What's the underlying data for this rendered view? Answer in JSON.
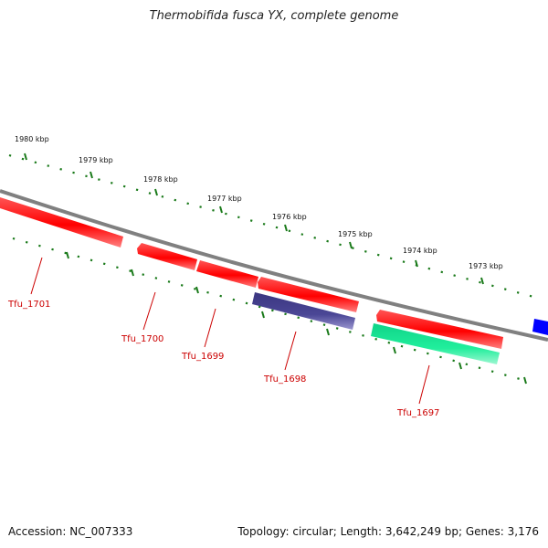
{
  "header": {
    "title": "Thermobifida fusca YX, complete genome"
  },
  "footer": {
    "accession": "Accession: NC_007333",
    "summary": "Topology: circular; Length: 3,642,249 bp; Genes: 3,176"
  },
  "scale": {
    "unit": "kbp",
    "ticks": [
      {
        "kbp": 1980,
        "label": "1980 kbp"
      },
      {
        "kbp": 1979,
        "label": "1979 kbp"
      },
      {
        "kbp": 1978,
        "label": "1978 kbp"
      },
      {
        "kbp": 1977,
        "label": "1977 kbp"
      },
      {
        "kbp": 1976,
        "label": "1976 kbp"
      },
      {
        "kbp": 1975,
        "label": "1975 kbp"
      },
      {
        "kbp": 1974,
        "label": "1974 kbp"
      },
      {
        "kbp": 1973,
        "label": "1973 kbp"
      }
    ]
  },
  "genes": [
    {
      "name": "Tfu_1701",
      "strand": "plus",
      "color": "#ff0000"
    },
    {
      "name": "Tfu_1700",
      "strand": "plus",
      "color": "#ff0000"
    },
    {
      "name": "Tfu_1699",
      "strand": "plus",
      "color": "#ff0000"
    },
    {
      "name": "Tfu_1698",
      "strand": "plus",
      "color": "#ff0000"
    },
    {
      "name": "Tfu_1698",
      "strand": "minus",
      "color": "#4b4796",
      "labelled": false
    },
    {
      "name": "Tfu_1697",
      "strand": "plus",
      "color": "#ff0000"
    },
    {
      "name": "Tfu_1697",
      "strand": "minus",
      "color": "#20ee9c",
      "labelled": false
    }
  ],
  "colors": {
    "backbone": "#808080",
    "tick": "#1a7a1a",
    "gene_plus": "#ff0000",
    "gene_label": "#cc0000",
    "edge_feature": "#0000ff"
  }
}
